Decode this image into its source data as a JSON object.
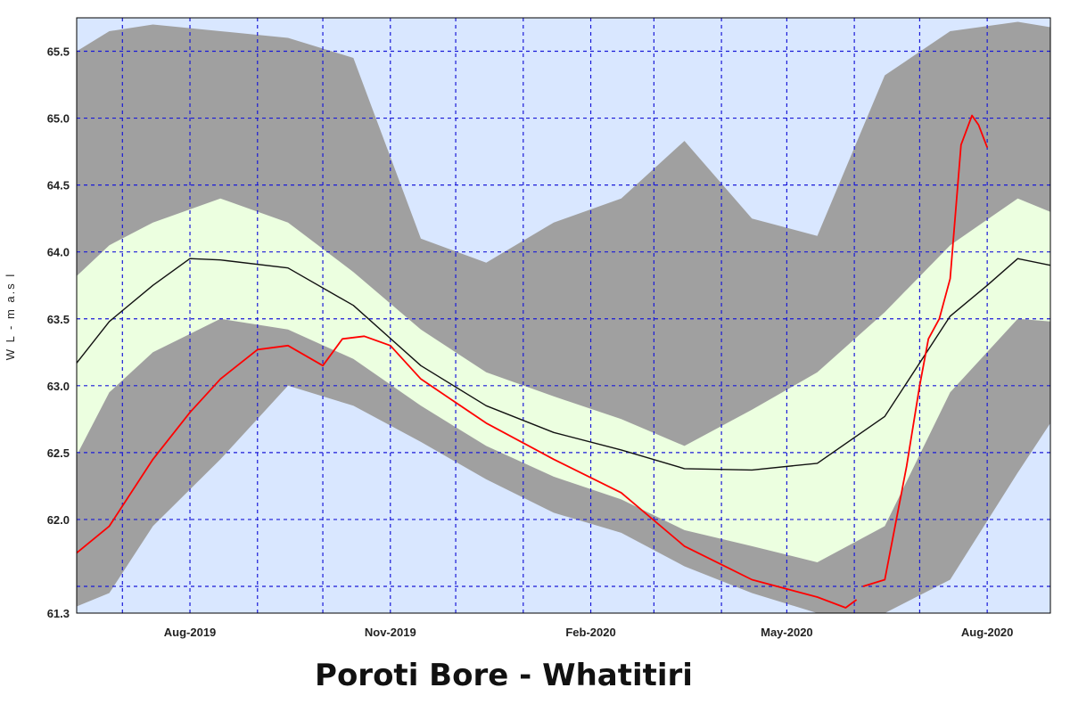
{
  "chart_data": {
    "type": "area",
    "title": "Poroti Bore - Whatitiri",
    "ylabel": "W L - m a.s l",
    "xlabel": "",
    "x_range": [
      "2019-06-10",
      "2020-08-30"
    ],
    "ylim": [
      61.3,
      65.75
    ],
    "grid": true,
    "x_ticks": [
      {
        "date": "2019-08-01",
        "label": "Aug-2019"
      },
      {
        "date": "2019-11-01",
        "label": "Nov-2019"
      },
      {
        "date": "2020-02-01",
        "label": "Feb-2020"
      },
      {
        "date": "2020-05-01",
        "label": "May-2020"
      },
      {
        "date": "2020-08-01",
        "label": "Aug-2020"
      }
    ],
    "minor_x_ticks": [
      "2019-07-01",
      "2019-09-01",
      "2019-10-01",
      "2019-12-01",
      "2020-01-01",
      "2020-03-01",
      "2020-04-01",
      "2020-06-01",
      "2020-07-01"
    ],
    "y_ticks": [
      61.3,
      62.0,
      62.5,
      63.0,
      63.5,
      64.0,
      64.5,
      65.0,
      65.5
    ],
    "y_tick_labels": [
      "61.3",
      "62.0",
      "62.5",
      "63.0",
      "63.5",
      "64.0",
      "64.5",
      "65.0",
      "65.5"
    ],
    "y_gridlines": [
      61.5,
      62.0,
      62.5,
      63.0,
      63.5,
      64.0,
      64.5,
      65.0,
      65.5
    ],
    "colors": {
      "background": "#d9e7ff",
      "grid": "#1a1ad8",
      "outer_band": "#a0a0a0",
      "inner_band": "#ecffe0",
      "median": "#111111",
      "observed": "#ff0000"
    },
    "bands": {
      "x": [
        "2019-06-10",
        "2019-06-25",
        "2019-07-15",
        "2019-08-15",
        "2019-09-15",
        "2019-10-15",
        "2019-11-15",
        "2019-12-15",
        "2020-01-15",
        "2020-02-15",
        "2020-03-15",
        "2020-04-15",
        "2020-05-15",
        "2020-06-15",
        "2020-07-15",
        "2020-08-15",
        "2020-08-30"
      ],
      "max": [
        65.5,
        65.65,
        65.7,
        65.65,
        65.6,
        65.45,
        64.1,
        63.92,
        64.22,
        64.4,
        64.83,
        64.25,
        64.12,
        65.32,
        65.65,
        65.72,
        65.68
      ],
      "upper": [
        63.82,
        64.05,
        64.22,
        64.4,
        64.22,
        63.85,
        63.42,
        63.1,
        62.92,
        62.75,
        62.55,
        62.82,
        63.1,
        63.55,
        64.05,
        64.4,
        64.3
      ],
      "lower": [
        62.48,
        62.95,
        63.25,
        63.5,
        63.42,
        63.2,
        62.85,
        62.55,
        62.32,
        62.15,
        61.92,
        61.8,
        61.68,
        61.95,
        62.95,
        63.5,
        63.48
      ],
      "min": [
        61.35,
        61.45,
        61.95,
        62.45,
        63.0,
        62.85,
        62.58,
        62.3,
        62.05,
        61.9,
        61.65,
        61.45,
        61.3,
        61.3,
        61.55,
        62.35,
        62.72
      ]
    },
    "series": [
      {
        "x": [
          "2019-06-10",
          "2019-06-25",
          "2019-07-15",
          "2019-08-01",
          "2019-08-15",
          "2019-09-15",
          "2019-10-15",
          "2019-11-15",
          "2019-12-15",
          "2020-01-15",
          "2020-02-15",
          "2020-03-15",
          "2020-04-15",
          "2020-05-15",
          "2020-06-15",
          "2020-07-15",
          "2020-08-01",
          "2020-08-15",
          "2020-08-30"
        ],
        "y": [
          63.17,
          63.48,
          63.75,
          63.95,
          63.94,
          63.88,
          63.6,
          63.15,
          62.85,
          62.65,
          62.52,
          62.38,
          62.37,
          62.42,
          62.77,
          63.52,
          63.75,
          63.95,
          63.9
        ]
      },
      {
        "x": [
          "2019-06-10",
          "2019-06-25",
          "2019-07-15",
          "2019-08-01",
          "2019-08-15",
          "2019-09-01",
          "2019-09-15",
          "2019-10-01",
          "2019-10-10",
          "2019-10-20",
          "2019-11-01",
          "2019-11-15",
          "2019-12-15",
          "2020-01-15",
          "2020-02-15",
          "2020-03-15",
          "2020-04-15",
          "2020-05-15",
          "2020-05-28",
          "2020-06-02"
        ],
        "y": [
          61.75,
          61.95,
          62.45,
          62.8,
          63.05,
          63.27,
          63.3,
          63.15,
          63.35,
          63.37,
          63.3,
          63.05,
          62.72,
          62.45,
          62.2,
          61.8,
          61.55,
          61.42,
          61.34,
          61.4
        ]
      },
      {
        "x": [
          "2020-06-05",
          "2020-06-15",
          "2020-06-25",
          "2020-07-01",
          "2020-07-05",
          "2020-07-10",
          "2020-07-15",
          "2020-07-20",
          "2020-07-25",
          "2020-07-28",
          "2020-08-01"
        ],
        "y": [
          61.5,
          61.55,
          62.4,
          63.0,
          63.35,
          63.5,
          63.8,
          64.8,
          65.02,
          64.95,
          64.78
        ]
      }
    ]
  }
}
